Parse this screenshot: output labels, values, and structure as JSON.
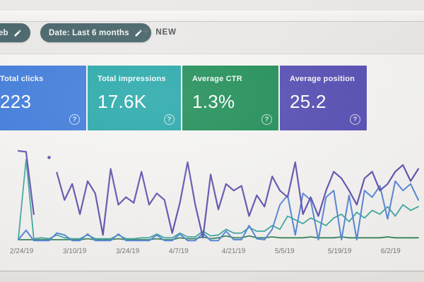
{
  "toolbar": {
    "search_type_chip": "Web",
    "date_chip": "Date: Last 6 months",
    "plus_sign": "+",
    "new_button": "NEW"
  },
  "icons": {
    "help_glyph": "?"
  },
  "metric_cards": [
    {
      "label": "Total clicks",
      "value": "223",
      "color": "#2e70d8"
    },
    {
      "label": "Total impressions",
      "value": "17.6K",
      "color": "#13a0a2"
    },
    {
      "label": "Average CTR",
      "value": "1.3%",
      "color": "#0c8449"
    },
    {
      "label": "Average position",
      "value": "25.2",
      "color": "#483fad"
    }
  ],
  "chart_data": {
    "type": "line",
    "x_tick_labels": [
      "2/24/19",
      "3/10/19",
      "3/24/19",
      "4/7/19",
      "4/21/19",
      "5/5/19",
      "5/19/19",
      "6/2/19"
    ],
    "ylim": [
      0,
      100
    ],
    "grid": false,
    "legend": "none",
    "series": [
      {
        "id": "impressions",
        "name": "Total impressions",
        "color": "#5948ab",
        "stroke_width": 2.2,
        "values": [
          97,
          96,
          30,
          null,
          null,
          74,
          45,
          62,
          30,
          65,
          52,
          8,
          78,
          40,
          48,
          42,
          75,
          40,
          52,
          45,
          10,
          42,
          85,
          40,
          5,
          72,
          35,
          62,
          55,
          60,
          28,
          50,
          38,
          70,
          55,
          48,
          85,
          30,
          48,
          28,
          55,
          75,
          68,
          55,
          40,
          68,
          75,
          55,
          62,
          75,
          82,
          65,
          78
        ],
        "isolated_points": [
          {
            "index": 4,
            "value": 90
          }
        ]
      },
      {
        "id": "clicks",
        "name": "Total clicks",
        "color": "#4b7fd6",
        "stroke_width": 2,
        "values": [
          3,
          13,
          2,
          2,
          2,
          10,
          8,
          2,
          2,
          9,
          2,
          2,
          2,
          9,
          2,
          2,
          2,
          2,
          8,
          2,
          2,
          9,
          2,
          2,
          10,
          2,
          2,
          12,
          3,
          3,
          18,
          4,
          3,
          14,
          40,
          50,
          8,
          52,
          45,
          3,
          48,
          55,
          3,
          50,
          3,
          55,
          48,
          60,
          25,
          65,
          55,
          62,
          45
        ],
        "isolated_points": []
      },
      {
        "id": "ctr",
        "name": "Average CTR",
        "color": "#33a39c",
        "stroke_width": 1.8,
        "values": [
          4,
          88,
          4,
          5,
          4,
          8,
          5,
          4,
          4,
          8,
          4,
          4,
          4,
          8,
          4,
          4,
          5,
          5,
          9,
          5,
          5,
          10,
          6,
          6,
          12,
          7,
          8,
          14,
          10,
          10,
          16,
          12,
          12,
          18,
          14,
          28,
          24,
          20,
          26,
          22,
          18,
          26,
          30,
          22,
          32,
          26,
          34,
          30,
          38,
          28,
          40,
          34,
          38
        ],
        "isolated_points": []
      },
      {
        "id": "position",
        "name": "Average position",
        "color": "#2c7d4f",
        "stroke_width": 1.8,
        "values": [
          3,
          3,
          3,
          3,
          3,
          3,
          3,
          3,
          3,
          4,
          3,
          3,
          3,
          4,
          3,
          3,
          3,
          3,
          4,
          3,
          3,
          5,
          4,
          4,
          6,
          4,
          5,
          7,
          5,
          5,
          7,
          5,
          5,
          6,
          5,
          5,
          5,
          5,
          6,
          5,
          5,
          5,
          6,
          5,
          5,
          5,
          5,
          5,
          6,
          5,
          5,
          5,
          5
        ],
        "isolated_points": []
      }
    ]
  }
}
